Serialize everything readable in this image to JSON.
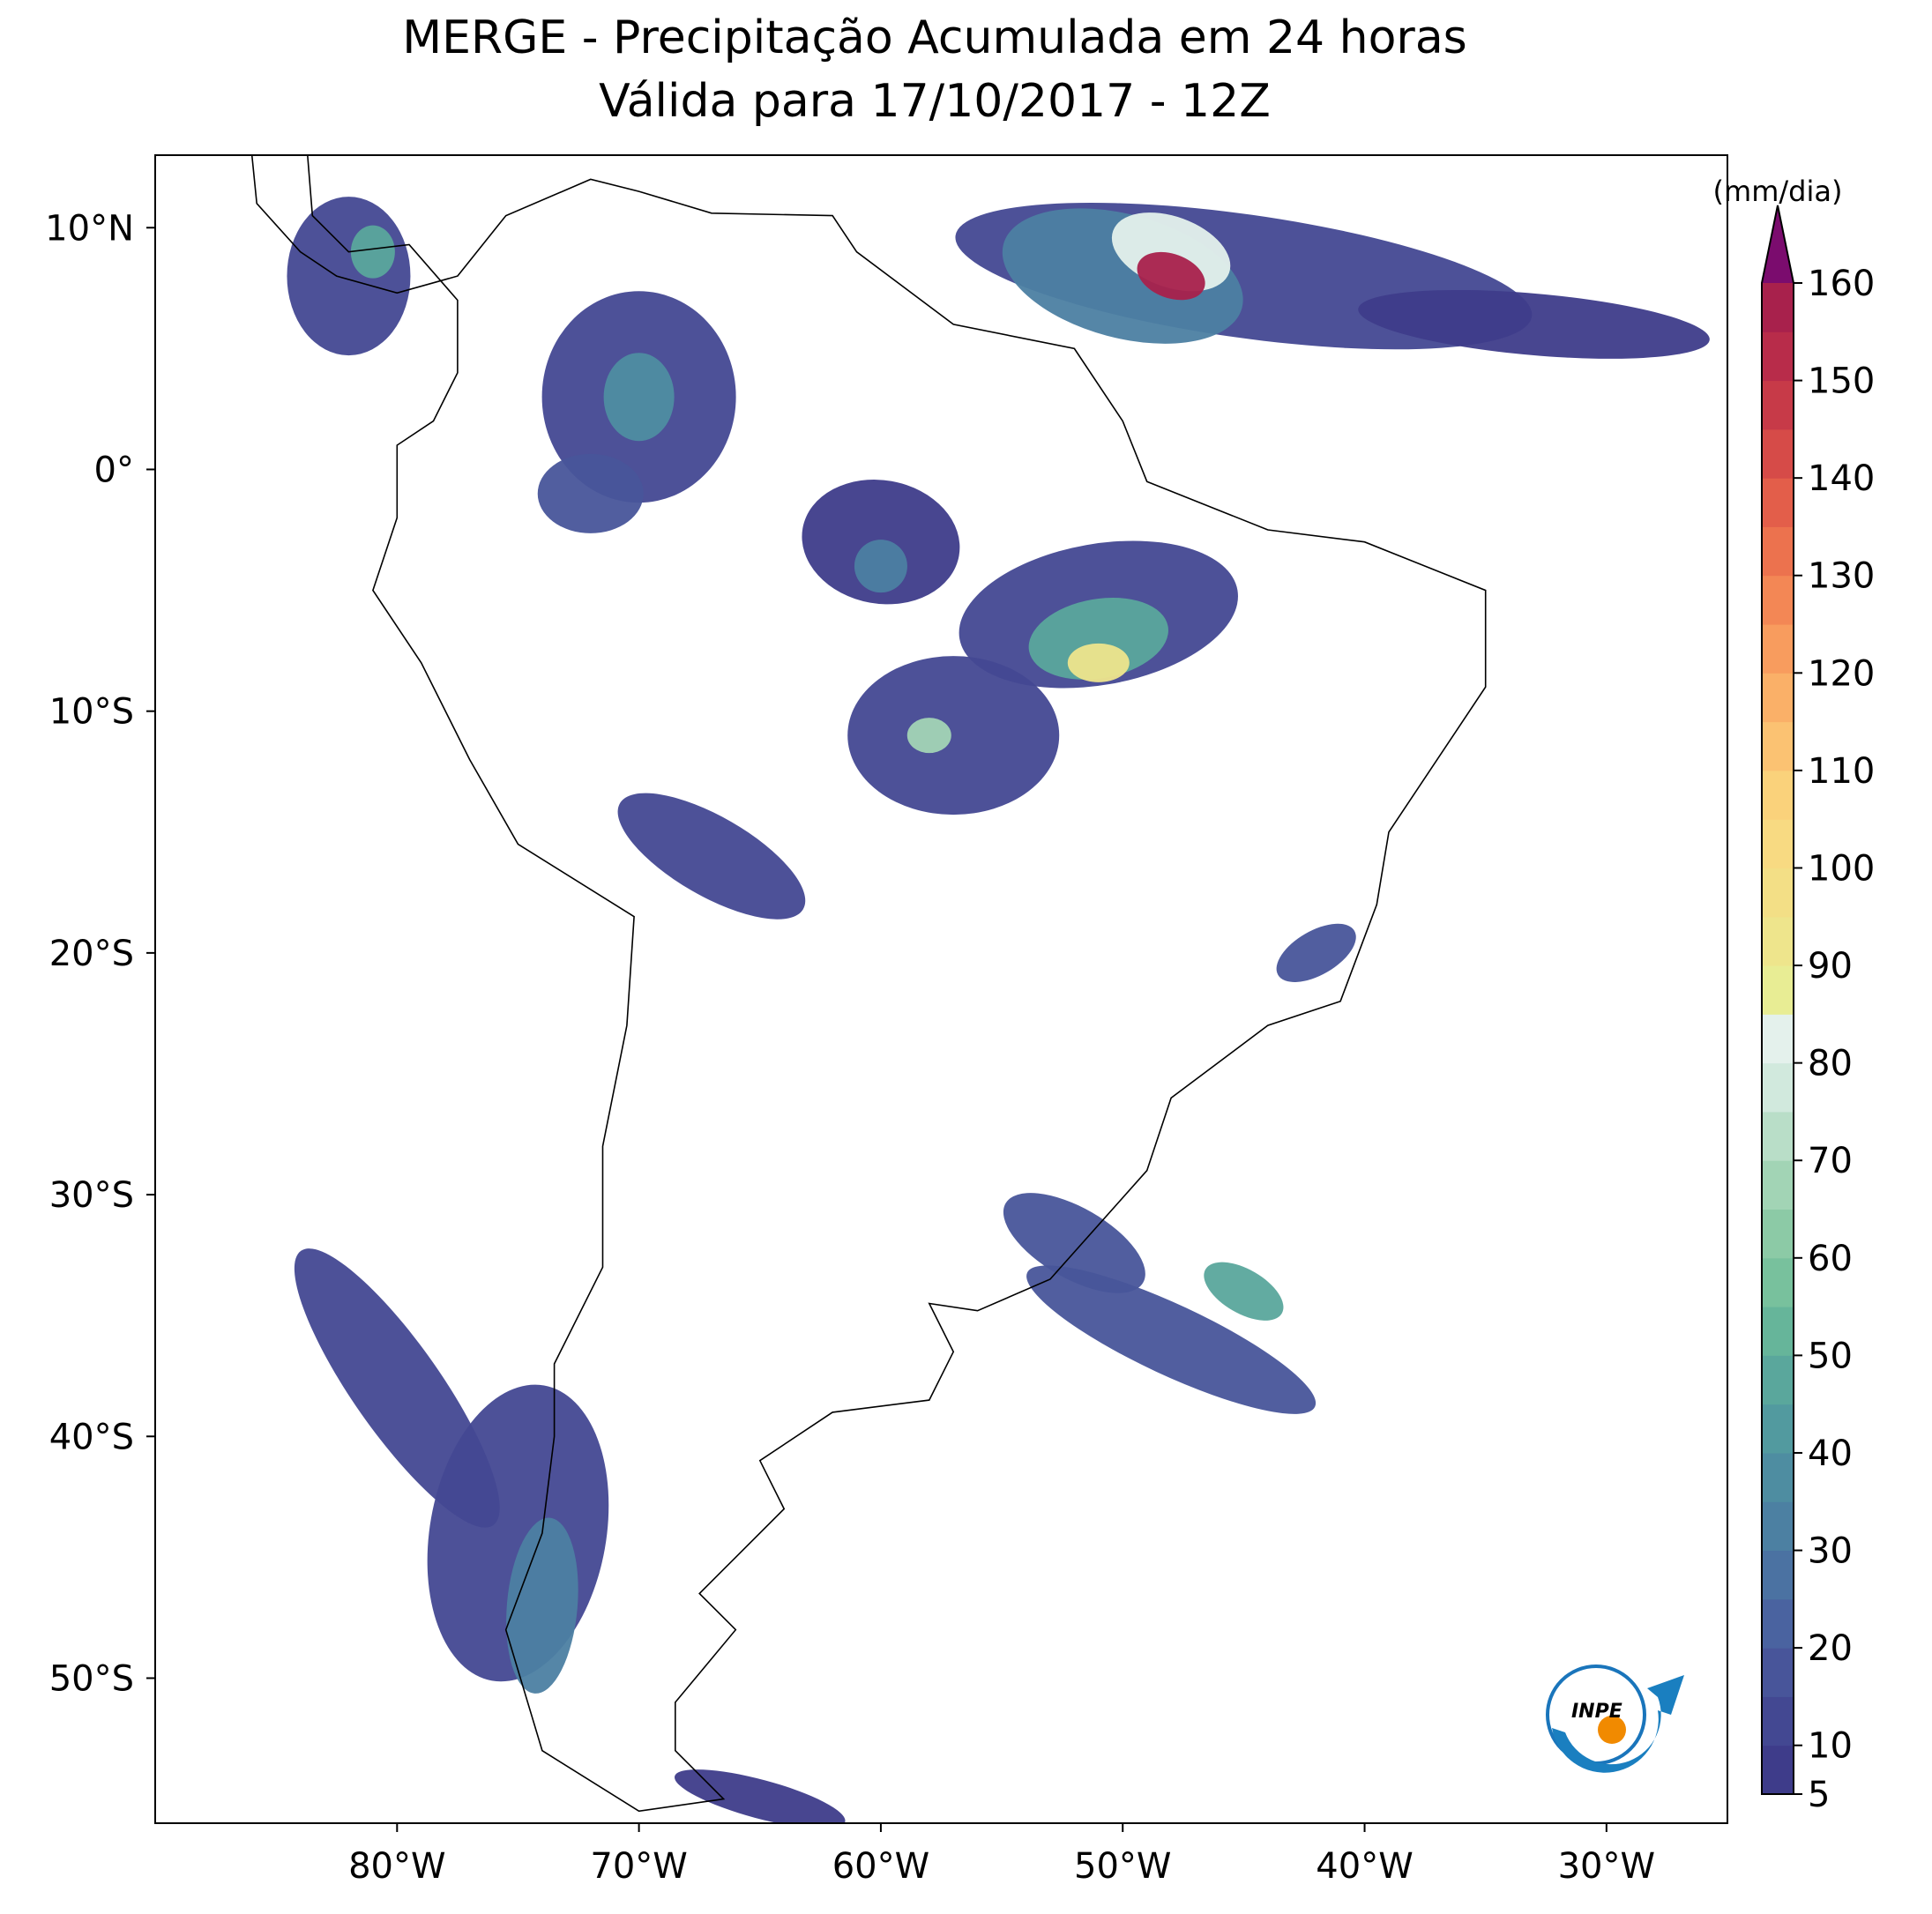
{
  "title": [
    "MERGE - Precipitação Acumulada em 24 horas",
    "Válida para 17/10/2017 - 12Z"
  ],
  "map": {
    "xlim": [
      -90,
      -25
    ],
    "ylim": [
      -56,
      13
    ],
    "xticks": [
      {
        "value": -80,
        "label": "80°W"
      },
      {
        "value": -70,
        "label": "70°W"
      },
      {
        "value": -60,
        "label": "60°W"
      },
      {
        "value": -50,
        "label": "50°W"
      },
      {
        "value": -40,
        "label": "40°W"
      },
      {
        "value": -30,
        "label": "30°W"
      }
    ],
    "yticks": [
      {
        "value": 10,
        "label": "10°N"
      },
      {
        "value": 0,
        "label": "0°"
      },
      {
        "value": -10,
        "label": "10°S"
      },
      {
        "value": -20,
        "label": "20°S"
      },
      {
        "value": -30,
        "label": "30°S"
      },
      {
        "value": -40,
        "label": "40°S"
      },
      {
        "value": -50,
        "label": "50°S"
      }
    ]
  },
  "colorbar": {
    "label": "(mm/dia)",
    "lim": [
      5,
      160
    ],
    "ticks": [
      5,
      10,
      20,
      30,
      40,
      50,
      60,
      70,
      80,
      90,
      100,
      110,
      120,
      130,
      140,
      150,
      160
    ],
    "colors": [
      "#3e3c8a",
      "#434892",
      "#48559a",
      "#4a63a0",
      "#4b72a2",
      "#4c80a2",
      "#4e8da1",
      "#529a9f",
      "#5aa79c",
      "#66b59a",
      "#78c19d",
      "#8ccaa6",
      "#a2d4b5",
      "#b9dec8",
      "#d1e9dd",
      "#e4f1ec",
      "#e8ed94",
      "#eee58c",
      "#f3df86",
      "#f8da82",
      "#fad27b",
      "#fbc272",
      "#fab068",
      "#f89c5e",
      "#f38755",
      "#ec724e",
      "#e35e4a",
      "#d64b48",
      "#c73a48",
      "#b82c4a",
      "#a8214c"
    ],
    "extend_color": "#7b0c6e"
  },
  "logo": "INPE"
}
